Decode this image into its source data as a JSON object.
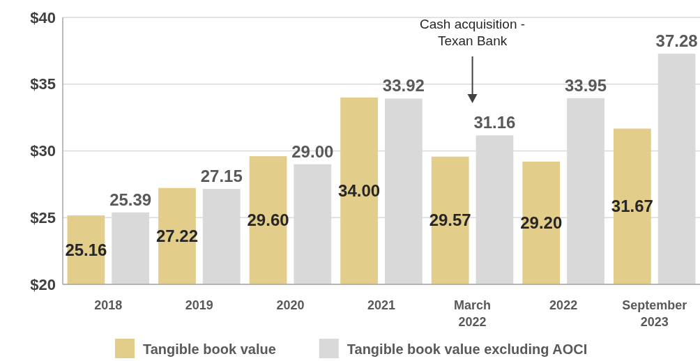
{
  "chart_data": {
    "type": "bar",
    "categories": [
      "2018",
      "2019",
      "2020",
      "2021",
      "March 2022",
      "2022",
      "September 2023"
    ],
    "series": [
      {
        "name": "Tangible book value",
        "color": "#e2cd8a",
        "values": [
          25.16,
          27.22,
          29.6,
          34.0,
          29.57,
          29.2,
          31.67
        ],
        "value_labels": [
          "25.16",
          "27.22",
          "29.60",
          "34.00",
          "29.57",
          "29.20",
          "31.67"
        ]
      },
      {
        "name": "Tangible book value excluding AOCI",
        "color": "#d9d9d9",
        "values": [
          25.39,
          27.15,
          29.0,
          33.92,
          31.16,
          33.95,
          37.28
        ],
        "value_labels": [
          "25.39",
          "27.15",
          "29.00",
          "33.92",
          "31.16",
          "33.95",
          "37.28"
        ]
      }
    ],
    "ylim": [
      20,
      40
    ],
    "yticks": [
      {
        "value": 20,
        "label": "$20"
      },
      {
        "value": 25,
        "label": "$25"
      },
      {
        "value": 30,
        "label": "$30"
      },
      {
        "value": 35,
        "label": "$35"
      },
      {
        "value": 40,
        "label": "$40"
      }
    ],
    "grid": "y",
    "legend": "bottom",
    "annotations": [
      "Cash acquisition - Texan Bank"
    ]
  }
}
